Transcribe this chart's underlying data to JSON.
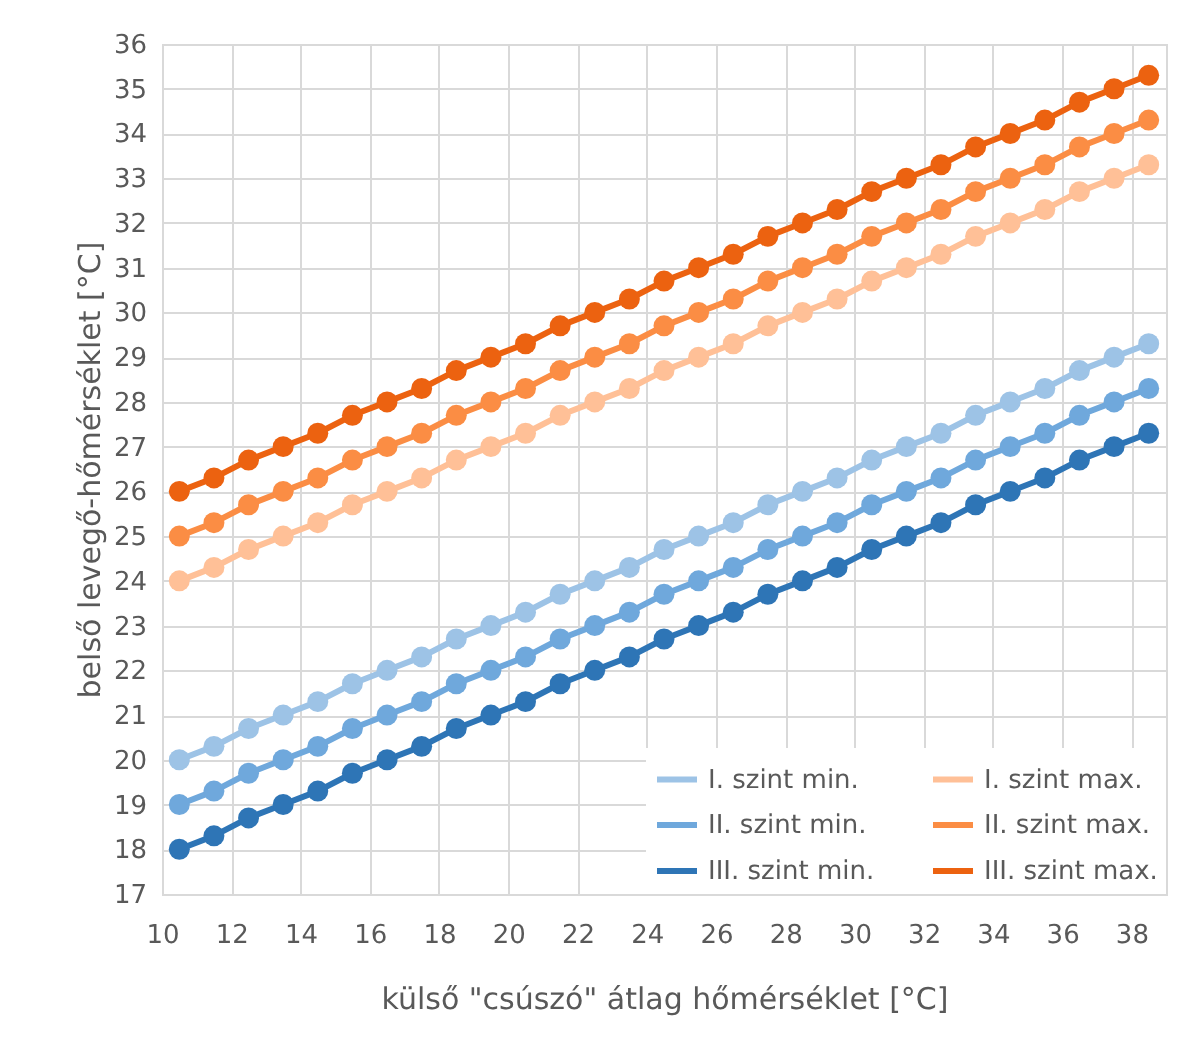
{
  "chart_data": {
    "type": "line",
    "xlabel": "külső \"csúszó\" átlag hőmérséklet [°C]",
    "ylabel": "belső levegő-hőmérséklet [°C]",
    "x": [
      10.5,
      11.5,
      12.5,
      13.5,
      14.5,
      15.5,
      16.5,
      17.5,
      18.5,
      19.5,
      20.5,
      21.5,
      22.5,
      23.5,
      24.5,
      25.5,
      26.5,
      27.5,
      28.5,
      29.5,
      30.5,
      31.5,
      32.5,
      33.5,
      34.5,
      35.5,
      36.5,
      37.5,
      38.5
    ],
    "xlim": [
      10,
      39
    ],
    "xticks": [
      10,
      12,
      14,
      16,
      18,
      20,
      22,
      24,
      26,
      28,
      30,
      32,
      34,
      36,
      38
    ],
    "ylim": [
      17,
      36
    ],
    "yticks": [
      17,
      18,
      19,
      20,
      21,
      22,
      23,
      24,
      25,
      26,
      27,
      28,
      29,
      30,
      31,
      32,
      33,
      34,
      35,
      36
    ],
    "grid": true,
    "legend": "bottom right",
    "marker": "circle",
    "line_style": "solid",
    "series": [
      {
        "name": "I. szint min.",
        "color": "#9dc3e6",
        "values": [
          20.0,
          20.3,
          20.7,
          21.0,
          21.3,
          21.7,
          22.0,
          22.3,
          22.7,
          23.0,
          23.3,
          23.7,
          24.0,
          24.3,
          24.7,
          25.0,
          25.3,
          25.7,
          26.0,
          26.3,
          26.7,
          27.0,
          27.3,
          27.7,
          28.0,
          28.3,
          28.7,
          29.0,
          29.3
        ]
      },
      {
        "name": "II. szint min.",
        "color": "#6fa8dc",
        "values": [
          19.0,
          19.3,
          19.7,
          20.0,
          20.3,
          20.7,
          21.0,
          21.3,
          21.7,
          22.0,
          22.3,
          22.7,
          23.0,
          23.3,
          23.7,
          24.0,
          24.3,
          24.7,
          25.0,
          25.3,
          25.7,
          26.0,
          26.3,
          26.7,
          27.0,
          27.3,
          27.7,
          28.0,
          28.3
        ]
      },
      {
        "name": "III. szint min.",
        "color": "#2e75b6",
        "values": [
          18.0,
          18.3,
          18.7,
          19.0,
          19.3,
          19.7,
          20.0,
          20.3,
          20.7,
          21.0,
          21.3,
          21.7,
          22.0,
          22.3,
          22.7,
          23.0,
          23.3,
          23.7,
          24.0,
          24.3,
          24.7,
          25.0,
          25.3,
          25.7,
          26.0,
          26.3,
          26.7,
          27.0,
          27.3
        ]
      },
      {
        "name": "I. szint max.",
        "color": "#ffc097",
        "values": [
          24.0,
          24.3,
          24.7,
          25.0,
          25.3,
          25.7,
          26.0,
          26.3,
          26.7,
          27.0,
          27.3,
          27.7,
          28.0,
          28.3,
          28.7,
          29.0,
          29.3,
          29.7,
          30.0,
          30.3,
          30.7,
          31.0,
          31.3,
          31.7,
          32.0,
          32.3,
          32.7,
          33.0,
          33.3
        ]
      },
      {
        "name": "II. szint max.",
        "color": "#fb8d44",
        "values": [
          25.0,
          25.3,
          25.7,
          26.0,
          26.3,
          26.7,
          27.0,
          27.3,
          27.7,
          28.0,
          28.3,
          28.7,
          29.0,
          29.3,
          29.7,
          30.0,
          30.3,
          30.7,
          31.0,
          31.3,
          31.7,
          32.0,
          32.3,
          32.7,
          33.0,
          33.3,
          33.7,
          34.0,
          34.3
        ]
      },
      {
        "name": "III. szint max.",
        "color": "#ec6210",
        "values": [
          26.0,
          26.3,
          26.7,
          27.0,
          27.3,
          27.7,
          28.0,
          28.3,
          28.7,
          29.0,
          29.3,
          29.7,
          30.0,
          30.3,
          30.7,
          31.0,
          31.3,
          31.7,
          32.0,
          32.3,
          32.7,
          33.0,
          33.3,
          33.7,
          34.0,
          34.3,
          34.7,
          35.0,
          35.3
        ]
      }
    ]
  }
}
